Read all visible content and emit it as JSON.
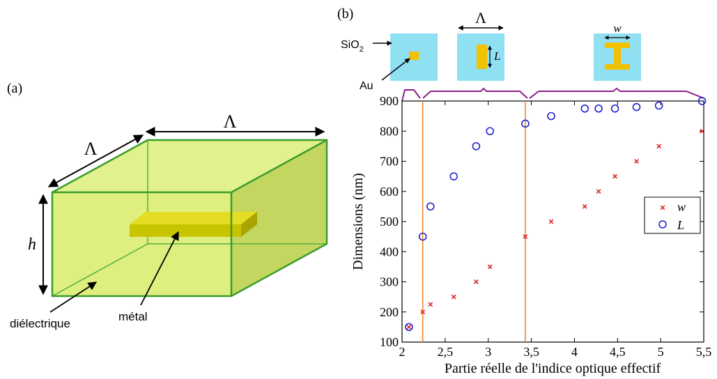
{
  "panel_a": {
    "label": "(a)",
    "lambda_top": "Λ",
    "lambda_side": "Λ",
    "height": "h",
    "dielectric": "diélectrique",
    "metal": "métal",
    "colors": {
      "box_face": "#d6ea6a",
      "box_edge": "#3a9c2a",
      "metal": "#c9c400"
    }
  },
  "panel_b": {
    "label": "(b)",
    "inset_labels": {
      "sio2_main": "SiO",
      "sio2_sub": "2",
      "au": "Au",
      "lambda": "Λ",
      "L": "L",
      "w": "w"
    },
    "colors": {
      "sio2": "#8fe0f2",
      "au": "#f2c100",
      "bracket": "#8b1c8b",
      "vline": "#f08020",
      "w_marker": "#e02020",
      "L_marker": "#2020d0"
    }
  },
  "chart_data": {
    "type": "scatter",
    "title": "",
    "xlabel": "Partie réelle de l'indice optique effectif",
    "ylabel": "Dimensions (nm)",
    "xlim": [
      2,
      5.5
    ],
    "ylim": [
      100,
      900
    ],
    "x_ticks": [
      2,
      2.5,
      3,
      3.5,
      4,
      4.5,
      5,
      5.5
    ],
    "x_tick_labels": [
      "2",
      "2,5",
      "3",
      "3,5",
      "4",
      "4,5",
      "5",
      "5,5"
    ],
    "y_ticks": [
      100,
      200,
      300,
      400,
      500,
      600,
      700,
      800,
      900
    ],
    "y_tick_labels": [
      "100",
      "200",
      "300",
      "400",
      "500",
      "600",
      "700",
      "800",
      "900"
    ],
    "vertical_lines": [
      2.24,
      3.43
    ],
    "legend_position": "center-right",
    "series": [
      {
        "name": "w",
        "marker": "x",
        "color": "#e02020",
        "points": [
          [
            2.08,
            150
          ],
          [
            2.24,
            200
          ],
          [
            2.33,
            225
          ],
          [
            2.6,
            250
          ],
          [
            2.86,
            300
          ],
          [
            3.02,
            350
          ],
          [
            3.43,
            450
          ],
          [
            3.73,
            500
          ],
          [
            4.12,
            550
          ],
          [
            4.28,
            600
          ],
          [
            4.47,
            650
          ],
          [
            4.72,
            700
          ],
          [
            4.98,
            750
          ],
          [
            5.48,
            800
          ]
        ]
      },
      {
        "name": "L",
        "marker": "o",
        "color": "#2020d0",
        "points": [
          [
            2.08,
            150
          ],
          [
            2.24,
            450
          ],
          [
            2.33,
            550
          ],
          [
            2.6,
            650
          ],
          [
            2.86,
            750
          ],
          [
            3.02,
            800
          ],
          [
            3.43,
            825
          ],
          [
            3.73,
            850
          ],
          [
            4.12,
            875
          ],
          [
            4.28,
            875
          ],
          [
            4.47,
            875
          ],
          [
            4.72,
            880
          ],
          [
            4.98,
            885
          ],
          [
            5.48,
            900
          ]
        ]
      }
    ]
  }
}
